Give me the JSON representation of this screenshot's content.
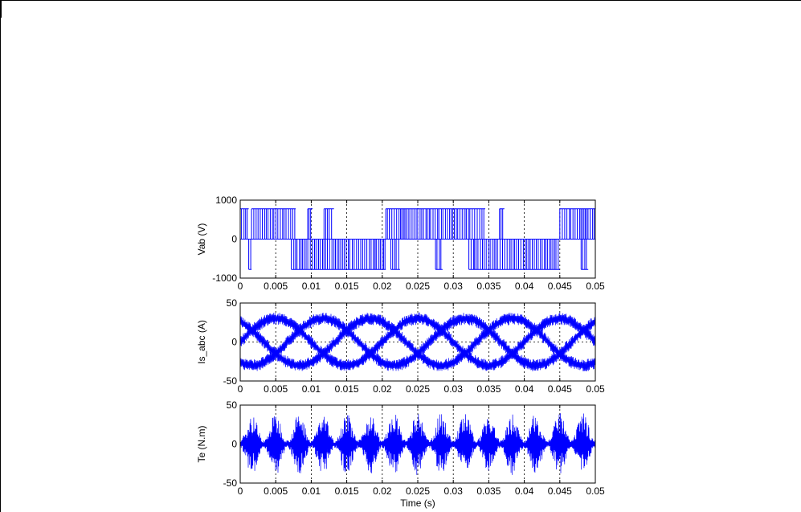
{
  "chart_data": [
    {
      "type": "line",
      "ylabel": "Vab (V)",
      "xlim": [
        0,
        0.05
      ],
      "ylim": [
        -1000,
        1000
      ],
      "xticks": [
        "0",
        "0.005",
        "0.01",
        "0.015",
        "0.02",
        "0.025",
        "0.03",
        "0.035",
        "0.04",
        "0.045",
        "0.05"
      ],
      "yticks": [
        "-1000",
        "0",
        "1000"
      ],
      "grid": true,
      "series": [
        {
          "color": "#0000ff",
          "description": "PWM line voltage switching between -780, 0 and +780 V"
        }
      ],
      "levels": [
        -780,
        0,
        780
      ],
      "segments": [
        {
          "x": [
            0.0,
            0.0012
          ],
          "from": 0,
          "to": 780
        },
        {
          "x": [
            0.0012,
            0.0016
          ],
          "from": 0,
          "to": -780
        },
        {
          "x": [
            0.0016,
            0.0078
          ],
          "from": 0,
          "to": 780
        },
        {
          "x": [
            0.0072,
            0.008
          ],
          "from": 0,
          "to": -780
        },
        {
          "x": [
            0.008,
            0.0105
          ],
          "from": 0,
          "to": -780
        },
        {
          "x": [
            0.0095,
            0.0102
          ],
          "from": 0,
          "to": 780
        },
        {
          "x": [
            0.0105,
            0.019
          ],
          "from": 0,
          "to": -780
        },
        {
          "x": [
            0.0118,
            0.0132
          ],
          "from": 0,
          "to": 780
        },
        {
          "x": [
            0.019,
            0.0205
          ],
          "from": 0,
          "to": -780
        },
        {
          "x": [
            0.0205,
            0.0212
          ],
          "from": 0,
          "to": 780
        },
        {
          "x": [
            0.0212,
            0.0225
          ],
          "from": 0,
          "to": -780
        },
        {
          "x": [
            0.021,
            0.032
          ],
          "from": 0,
          "to": 780
        },
        {
          "x": [
            0.0275,
            0.0285
          ],
          "from": 0,
          "to": -780
        },
        {
          "x": [
            0.0318,
            0.0345
          ],
          "from": 0,
          "to": 780
        },
        {
          "x": [
            0.0322,
            0.033
          ],
          "from": 0,
          "to": -780
        },
        {
          "x": [
            0.033,
            0.044
          ],
          "from": 0,
          "to": -780
        },
        {
          "x": [
            0.0365,
            0.0372
          ],
          "from": 0,
          "to": 780
        },
        {
          "x": [
            0.044,
            0.045
          ],
          "from": 0,
          "to": -780
        },
        {
          "x": [
            0.045,
            0.05
          ],
          "from": 0,
          "to": 780
        },
        {
          "x": [
            0.048,
            0.049
          ],
          "from": 0,
          "to": -780
        }
      ]
    },
    {
      "type": "line",
      "ylabel": "Is_abc (A)",
      "xlim": [
        0,
        0.05
      ],
      "ylim": [
        -50,
        50
      ],
      "xticks": [
        "0",
        "0.005",
        "0.01",
        "0.015",
        "0.02",
        "0.025",
        "0.03",
        "0.035",
        "0.04",
        "0.045",
        "0.05"
      ],
      "yticks": [
        "-50",
        "0",
        "50"
      ],
      "grid": true,
      "series": [
        {
          "color": "#0000ff",
          "description": "three-phase stator currents with PWM ripple"
        }
      ],
      "amplitude": 30,
      "ripple": 8,
      "frequency_hz": 50,
      "phases_deg": [
        0,
        -120,
        120
      ]
    },
    {
      "type": "line",
      "ylabel": "Te (N.m)",
      "xlabel": "Time (s)",
      "xlim": [
        0,
        0.05
      ],
      "ylim": [
        -50,
        50
      ],
      "xticks": [
        "0",
        "0.005",
        "0.01",
        "0.015",
        "0.02",
        "0.025",
        "0.03",
        "0.035",
        "0.04",
        "0.045",
        "0.05"
      ],
      "yticks": [
        "-50",
        "0",
        "50"
      ],
      "grid": true,
      "series": [
        {
          "color": "#0000ff",
          "description": "electromagnetic torque with high-frequency oscillation"
        }
      ],
      "envelope_max": 40,
      "envelope_min": 5,
      "envelope_period": 0.00333
    }
  ]
}
